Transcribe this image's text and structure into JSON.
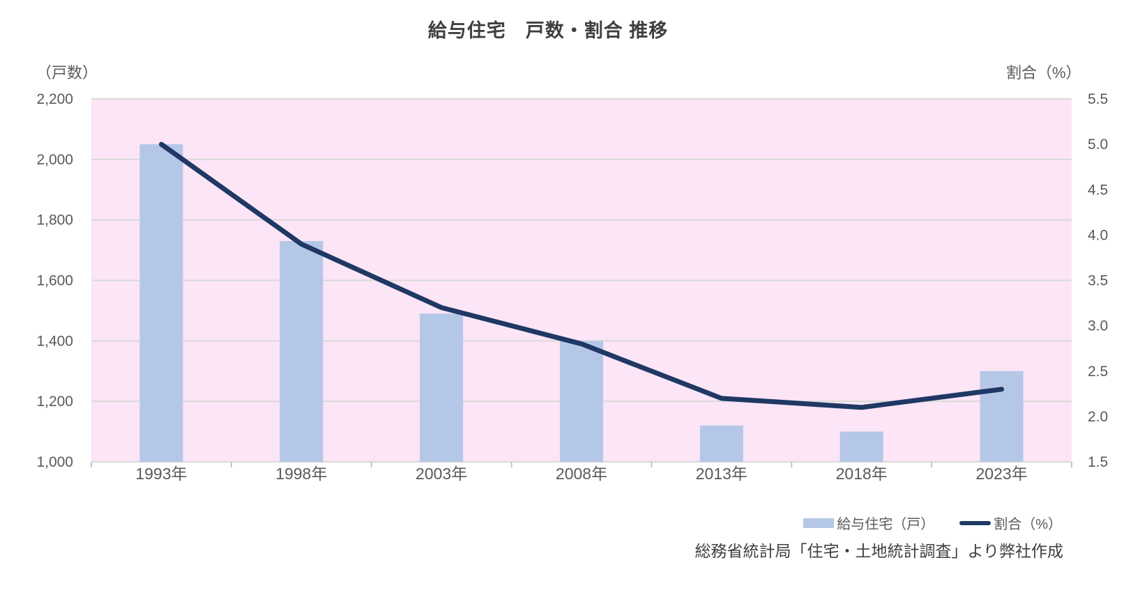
{
  "chart_data": {
    "type": "combo-bar-line",
    "title": "給与住宅　戸数・割合 推移",
    "categories": [
      "1993年",
      "1998年",
      "2003年",
      "2008年",
      "2013年",
      "2018年",
      "2023年"
    ],
    "series": [
      {
        "name": "給与住宅（戸）",
        "type": "bar",
        "axis": "left",
        "values": [
          2050,
          1730,
          1490,
          1400,
          1120,
          1100,
          1300
        ],
        "color": "#b4c7e7"
      },
      {
        "name": "割合（%）",
        "type": "line",
        "axis": "right",
        "values": [
          5.0,
          3.9,
          3.2,
          2.8,
          2.2,
          2.1,
          2.3
        ],
        "color": "#1f3864"
      }
    ],
    "left_axis": {
      "label": "（戸数）",
      "min": 1000,
      "max": 2200,
      "step": 200,
      "tick_labels_top_down": [
        "2,200",
        "2,000",
        "1,800",
        "1,600",
        "1,400",
        "1,200",
        "1,000"
      ]
    },
    "right_axis": {
      "label": "割合（%）",
      "min": 1.5,
      "max": 5.5,
      "step": 0.5,
      "tick_labels_top_down": [
        "5.5",
        "5.0",
        "4.5",
        "4.0",
        "3.5",
        "3.0",
        "2.5",
        "2.0",
        "1.5"
      ]
    },
    "legend_position": "bottom-right",
    "grid": true,
    "colors": {
      "plot_background": "#fbe5f6",
      "gridline": "#d9d9d9",
      "axis_tick": "#c3c3c3",
      "tick_text": "#595959",
      "title_text": "#3f3f3f"
    },
    "source": "総務省統計局「住宅・土地統計調査」より弊社作成"
  }
}
